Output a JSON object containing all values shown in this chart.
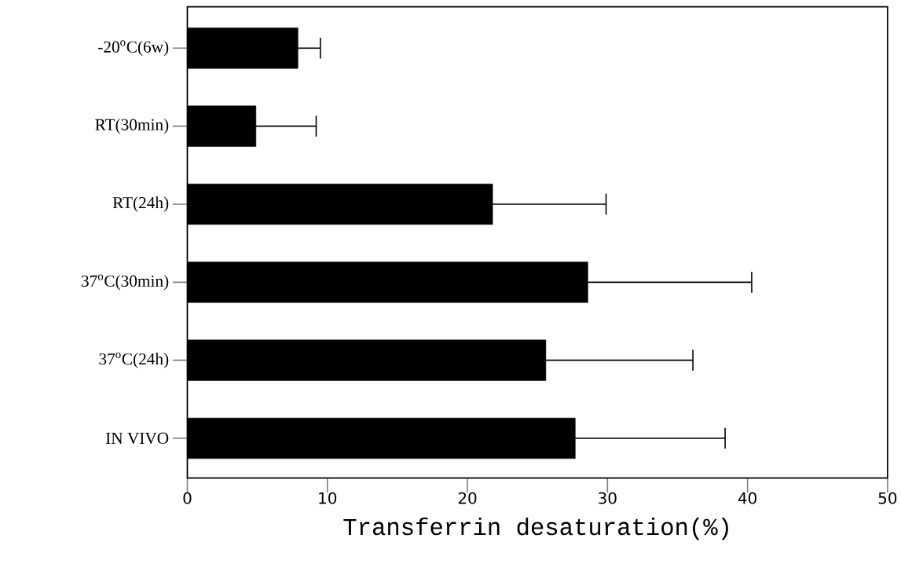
{
  "chart_data": {
    "type": "bar",
    "orientation": "horizontal",
    "categories": [
      "-20$^{o}$C(6w)",
      "RT(30min)",
      "RT(24h)",
      "37$^{o}$C(30min)",
      "37$^{o}$C(24h)",
      "IN VIVO"
    ],
    "values": [
      7.9,
      4.9,
      21.8,
      28.6,
      25.6,
      27.7
    ],
    "errors": [
      [
        7.9,
        9.5
      ],
      [
        4.9,
        9.2
      ],
      [
        21.8,
        29.9
      ],
      [
        28.6,
        40.3
      ],
      [
        25.6,
        36.1
      ],
      [
        27.7,
        38.4
      ]
    ],
    "color": "#000000",
    "xlabel": "Transferrin desaturation(%)",
    "xlim": [
      0,
      50
    ],
    "xticks": [
      0,
      10,
      20,
      30,
      40,
      50
    ],
    "grid": false
  }
}
